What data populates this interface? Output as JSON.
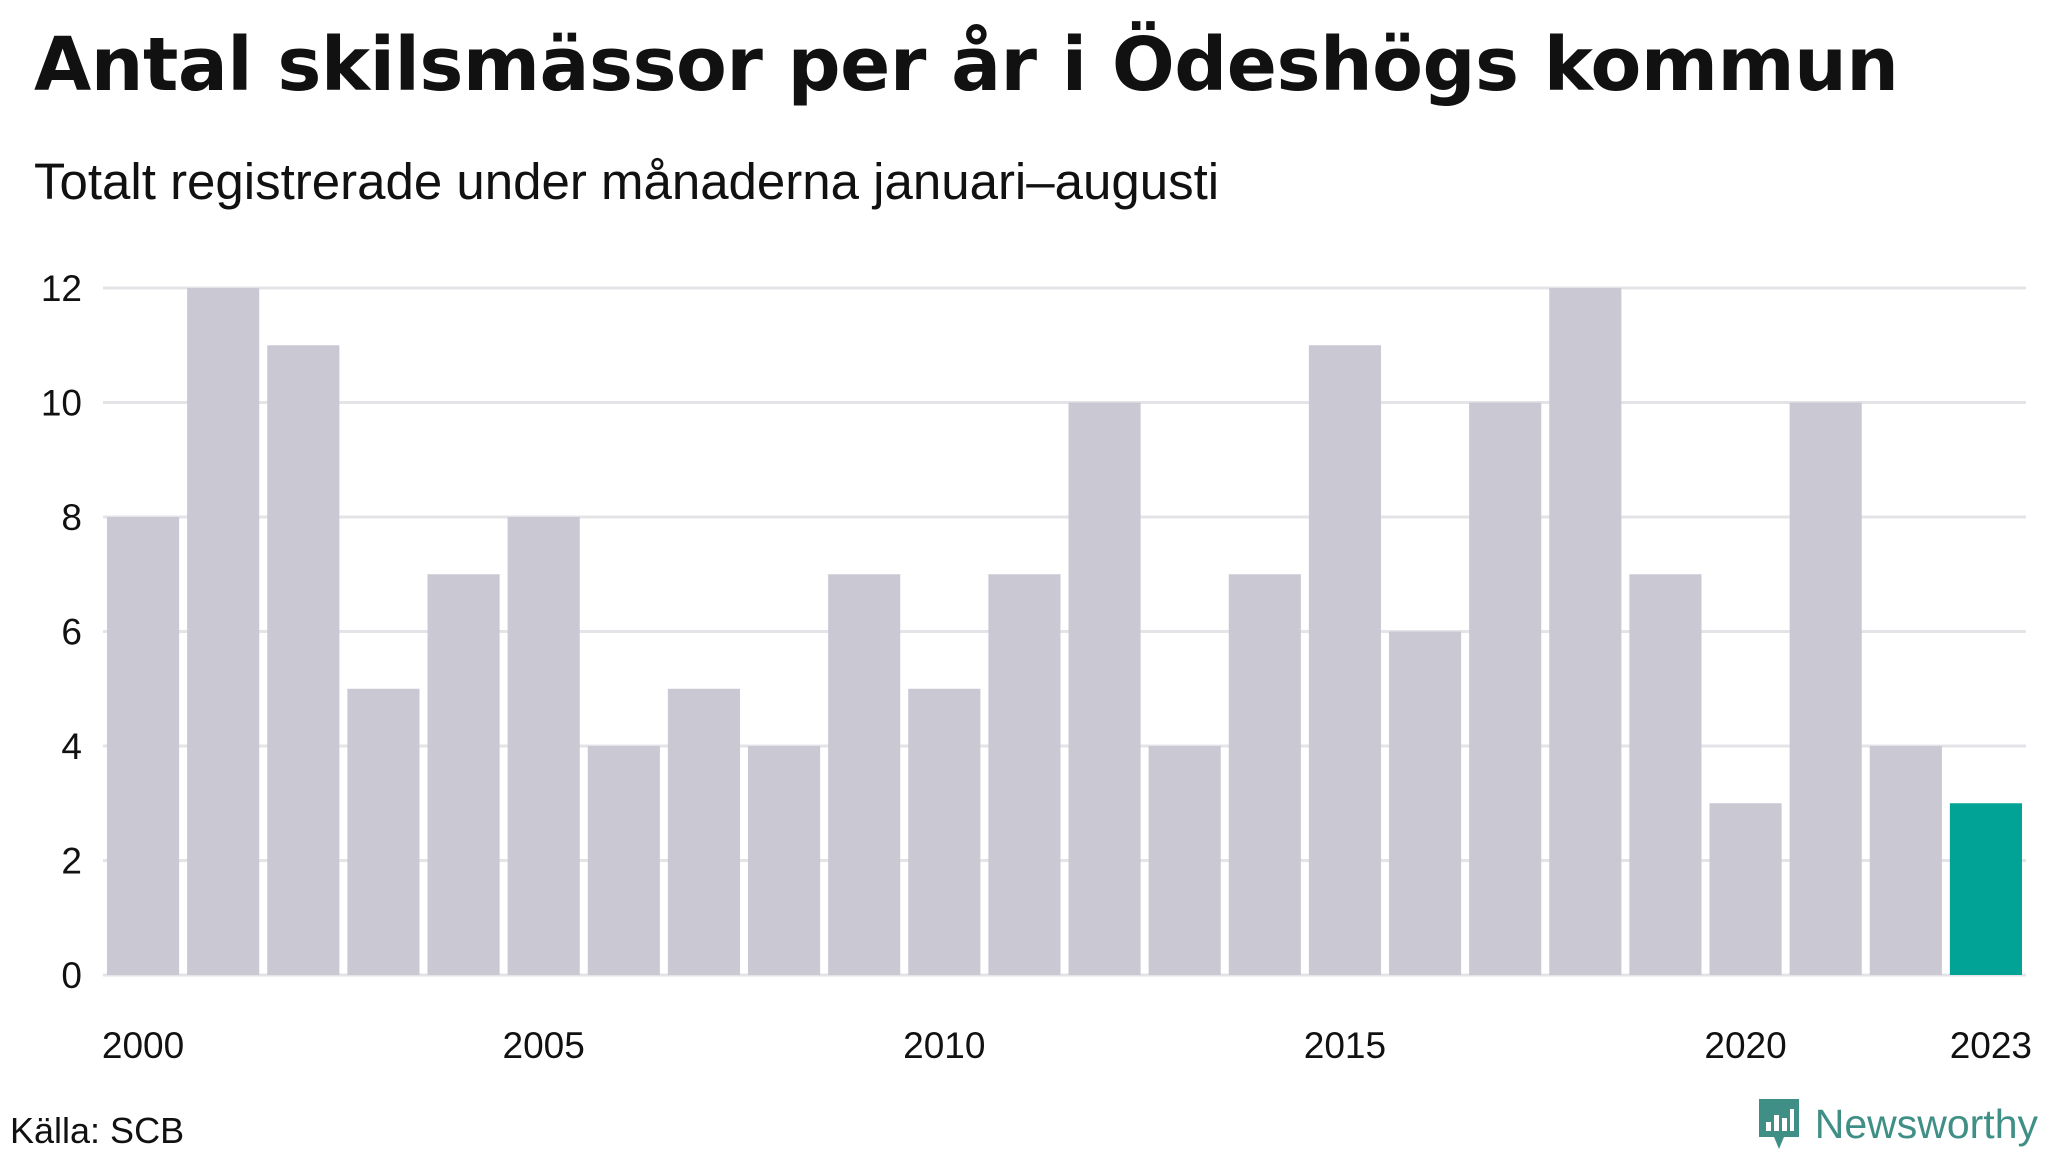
{
  "title": "Antal skilsmässor per år i Ödeshögs kommun",
  "subtitle": "Totalt registrerade under månaderna januari–augusti",
  "source": "Källa: SCB",
  "brand": {
    "name": "Newsworthy",
    "color": "#3f8f86"
  },
  "colors": {
    "bar": "#c9c8d3",
    "highlight": "#00a396",
    "grid": "#e4e4e8",
    "text": "#111111"
  },
  "chart_data": {
    "type": "bar",
    "categories": [
      "2000",
      "2001",
      "2002",
      "2003",
      "2004",
      "2005",
      "2006",
      "2007",
      "2008",
      "2009",
      "2010",
      "2011",
      "2012",
      "2013",
      "2014",
      "2015",
      "2016",
      "2017",
      "2018",
      "2019",
      "2020",
      "2021",
      "2022",
      "2023"
    ],
    "values": [
      8,
      12,
      11,
      5,
      7,
      8,
      4,
      5,
      4,
      7,
      5,
      7,
      10,
      4,
      7,
      11,
      6,
      10,
      12,
      7,
      3,
      10,
      4,
      3
    ],
    "highlight": "2023",
    "xtick_labels": [
      "2000",
      "2005",
      "2010",
      "2015",
      "2020",
      "2023"
    ],
    "ylim": [
      0,
      12
    ],
    "yticks": [
      0,
      2,
      4,
      6,
      8,
      10,
      12
    ],
    "grid": true,
    "xlabel": "",
    "ylabel": ""
  }
}
